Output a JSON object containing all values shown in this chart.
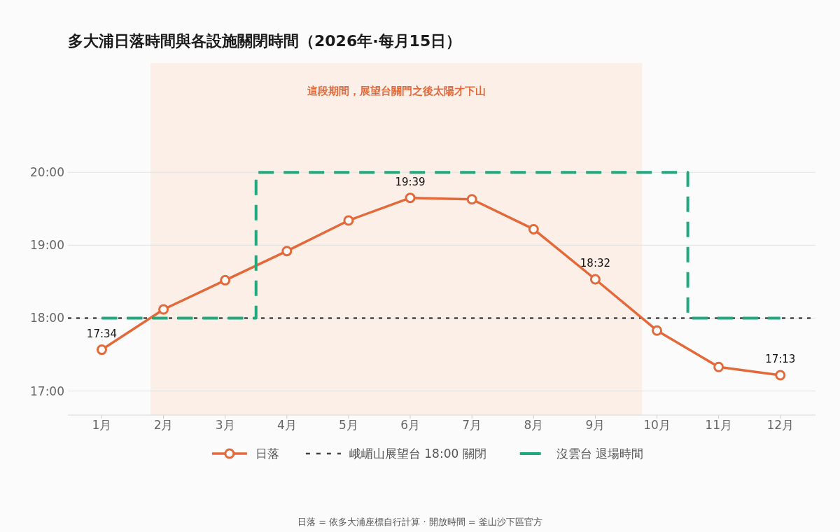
{
  "chart_data": {
    "type": "line",
    "title": "多大浦日落時間與各設施關閉時間（2026年·每月15日）",
    "x": [
      1,
      2,
      3,
      4,
      5,
      6,
      7,
      8,
      9,
      10,
      11,
      12
    ],
    "xlim": [
      0.45,
      12.57
    ],
    "xticks": [
      {
        "value": 1,
        "label": "1月"
      },
      {
        "value": 2,
        "label": "2月"
      },
      {
        "value": 3,
        "label": "3月"
      },
      {
        "value": 4,
        "label": "4月"
      },
      {
        "value": 5,
        "label": "5月"
      },
      {
        "value": 6,
        "label": "6月"
      },
      {
        "value": 7,
        "label": "7月"
      },
      {
        "value": 8,
        "label": "8月"
      },
      {
        "value": 9,
        "label": "9月"
      },
      {
        "value": 10,
        "label": "10月"
      },
      {
        "value": 11,
        "label": "11月"
      },
      {
        "value": 12,
        "label": "12月"
      }
    ],
    "ylim": [
      16.67,
      21.5
    ],
    "yticks": [
      {
        "value": 17,
        "label": "17:00"
      },
      {
        "value": 18,
        "label": "18:00"
      },
      {
        "value": 19,
        "label": "19:00"
      },
      {
        "value": 20,
        "label": "20:00"
      }
    ],
    "series": [
      {
        "name": "日落",
        "color": "#e4693a",
        "marker": "circle",
        "line_style": "solid",
        "values": [
          17.567,
          18.12,
          18.52,
          18.92,
          19.34,
          19.65,
          19.63,
          19.22,
          18.533,
          17.83,
          17.33,
          17.217
        ],
        "value_labels": [
          "17:34",
          null,
          null,
          null,
          null,
          "19:39",
          null,
          null,
          "18:32",
          null,
          null,
          "17:13"
        ]
      },
      {
        "name": "沒雲台 退場時間",
        "color": "#1fa97f",
        "marker": "none",
        "line_style": "dashed",
        "x": [
          1,
          3.5,
          3.5,
          10.5,
          10.5,
          12
        ],
        "values": [
          18,
          18,
          20,
          20,
          18,
          18
        ]
      }
    ],
    "ref_lines": [
      {
        "axis": "y",
        "value": 18,
        "label": "峨嵋山展望台 18:00 關閉",
        "color": "#444444",
        "line_style": "dotted"
      }
    ],
    "bands": [
      {
        "axis": "x",
        "from": 1.79,
        "to": 9.76,
        "label": "這段期間，展望台關門之後太陽才下山",
        "color": "#fbefe7"
      }
    ],
    "grid": "y",
    "legend": "bottom",
    "annotations": [
      "日落 = 依多大浦座標自行計算 · 開放時間 = 釜山沙下區官方"
    ]
  }
}
